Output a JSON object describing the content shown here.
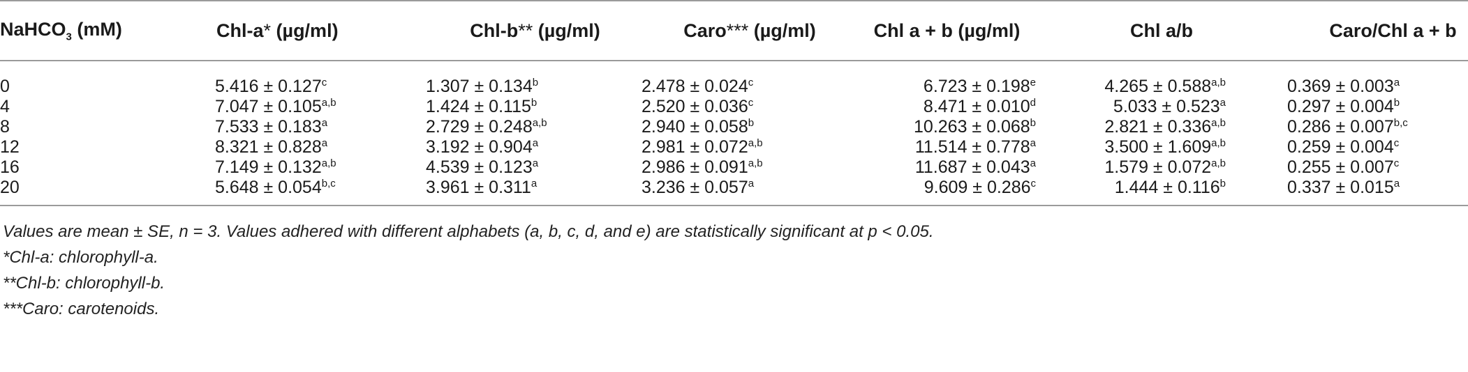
{
  "table": {
    "headers": [
      {
        "main": "NaHCO",
        "sub": "3",
        "rest": " (mM)"
      },
      {
        "main": "Chl-a",
        "mark": "*",
        "unit": " (µg/ml)"
      },
      {
        "main": "Chl-b",
        "mark": "**",
        "unit": " (µg/ml)"
      },
      {
        "main": "Caro",
        "mark": "***",
        "unit": " (µg/ml)"
      },
      {
        "main": "Chl a + b (µg/ml)"
      },
      {
        "main": "Chl a/b"
      },
      {
        "main": "Caro/Chl a + b"
      }
    ],
    "rows": [
      {
        "conc": "0",
        "cells": [
          [
            "5.416 ± 0.127",
            "c"
          ],
          [
            "1.307 ± 0.134",
            "b"
          ],
          [
            "2.478 ± 0.024",
            "c"
          ],
          [
            "6.723 ± 0.198",
            "e"
          ],
          [
            "4.265 ± 0.588",
            "a,b"
          ],
          [
            "0.369 ± 0.003",
            "a"
          ]
        ]
      },
      {
        "conc": "4",
        "cells": [
          [
            "7.047 ± 0.105",
            "a,b"
          ],
          [
            "1.424 ± 0.115",
            "b"
          ],
          [
            "2.520 ± 0.036",
            "c"
          ],
          [
            "8.471 ± 0.010",
            "d"
          ],
          [
            "5.033 ± 0.523",
            "a"
          ],
          [
            "0.297 ± 0.004",
            "b"
          ]
        ]
      },
      {
        "conc": "8",
        "cells": [
          [
            "7.533 ± 0.183",
            "a"
          ],
          [
            "2.729 ± 0.248",
            "a,b"
          ],
          [
            "2.940 ± 0.058",
            "b"
          ],
          [
            "10.263 ± 0.068",
            "b"
          ],
          [
            "2.821 ± 0.336",
            "a,b"
          ],
          [
            "0.286 ± 0.007",
            "b,c"
          ]
        ]
      },
      {
        "conc": "12",
        "cells": [
          [
            "8.321 ± 0.828",
            "a"
          ],
          [
            "3.192 ± 0.904",
            "a"
          ],
          [
            "2.981 ± 0.072",
            "a,b"
          ],
          [
            "11.514 ± 0.778",
            "a"
          ],
          [
            "3.500 ± 1.609",
            "a,b"
          ],
          [
            "0.259 ± 0.004",
            "c"
          ]
        ]
      },
      {
        "conc": "16",
        "cells": [
          [
            "7.149 ± 0.132",
            "a,b"
          ],
          [
            "4.539 ± 0.123",
            "a"
          ],
          [
            "2.986 ± 0.091",
            "a,b"
          ],
          [
            "11.687 ± 0.043",
            "a"
          ],
          [
            "1.579 ± 0.072",
            "a,b"
          ],
          [
            "0.255 ± 0.007",
            "c"
          ]
        ]
      },
      {
        "conc": "20",
        "cells": [
          [
            "5.648 ± 0.054",
            "b,c"
          ],
          [
            "3.961 ± 0.311",
            "a"
          ],
          [
            "3.236 ± 0.057",
            "a"
          ],
          [
            "9.609 ± 0.286",
            "c"
          ],
          [
            "1.444 ± 0.116",
            "b"
          ],
          [
            "0.337 ± 0.015",
            "a"
          ]
        ]
      }
    ]
  },
  "notes": [
    "Values are mean ± SE, n = 3. Values adhered with different alphabets (a, b, c, d, and e) are statistically significant at p < 0.05.",
    "*Chl-a: chlorophyll-a.",
    "**Chl-b: chlorophyll-b.",
    "***Caro: carotenoids."
  ]
}
